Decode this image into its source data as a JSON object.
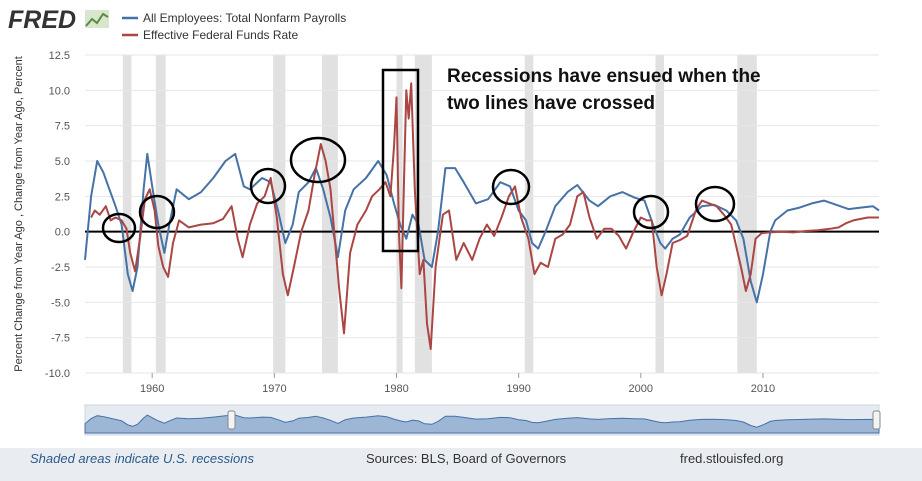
{
  "brand": {
    "name": "FRED",
    "logo_icon": "fred-chart-logo-icon"
  },
  "legend": [
    {
      "label": "All Employees: Total Nonfarm Payrolls",
      "color": "#4572a7"
    },
    {
      "label": "Effective Federal Funds Rate",
      "color": "#aa4643"
    }
  ],
  "annotation": {
    "line1": "Recessions have ensued when the",
    "line2": "two lines have crossed"
  },
  "footer": {
    "note": "Shaded areas indicate U.S. recessions",
    "sources": "Sources: BLS, Board of Governors",
    "url": "fred.stlouisfed.org"
  },
  "chart_data": {
    "type": "line",
    "ylabel": "Percent Change from Year Ago , Change from Year Ago, Percent",
    "xlim": [
      1954.5,
      2019.5
    ],
    "ylim": [
      -10.0,
      12.5
    ],
    "yticks": [
      "12.5",
      "10.0",
      "7.5",
      "5.0",
      "2.5",
      "0.0",
      "-2.5",
      "-5.0",
      "-7.5",
      "-10.0"
    ],
    "ytick_values": [
      12.5,
      10,
      7.5,
      5,
      2.5,
      0,
      -2.5,
      -5,
      -7.5,
      -10
    ],
    "xticks": [
      "1960",
      "1970",
      "1980",
      "1990",
      "2000",
      "2010"
    ],
    "xtick_values": [
      1960,
      1970,
      1980,
      1990,
      2000,
      2010
    ],
    "recessions": [
      [
        1957.6,
        1958.3
      ],
      [
        1960.3,
        1961.1
      ],
      [
        1969.9,
        1970.9
      ],
      [
        1973.9,
        1975.2
      ],
      [
        1980.0,
        1980.5
      ],
      [
        1981.5,
        1982.9
      ],
      [
        1990.5,
        1991.2
      ],
      [
        2001.2,
        2001.9
      ],
      [
        2007.9,
        2009.5
      ]
    ],
    "series": [
      {
        "name": "All Employees: Total Nonfarm Payrolls",
        "color": "#4572a7",
        "x": [
          1954.5,
          1955.0,
          1955.5,
          1956.0,
          1956.5,
          1957.0,
          1957.5,
          1958.0,
          1958.4,
          1958.8,
          1959.3,
          1959.6,
          1960.0,
          1960.5,
          1961.0,
          1961.4,
          1962.0,
          1963.0,
          1964.0,
          1965.0,
          1966.0,
          1966.8,
          1967.5,
          1968.0,
          1969.0,
          1969.7,
          1970.3,
          1970.9,
          1971.5,
          1972.0,
          1972.8,
          1973.4,
          1974.0,
          1974.6,
          1975.2,
          1975.8,
          1976.5,
          1977.5,
          1978.5,
          1979.2,
          1979.8,
          1980.3,
          1980.8,
          1981.3,
          1981.8,
          1982.3,
          1982.9,
          1983.4,
          1984.0,
          1984.8,
          1985.5,
          1986.5,
          1987.5,
          1988.5,
          1989.3,
          1990.0,
          1990.6,
          1991.1,
          1991.6,
          1992.2,
          1993.0,
          1994.0,
          1994.8,
          1995.8,
          1996.5,
          1997.5,
          1998.5,
          1999.5,
          2000.3,
          2001.0,
          2001.6,
          2002.0,
          2002.6,
          2003.2,
          2004.0,
          2005.0,
          2006.0,
          2007.0,
          2007.8,
          2008.4,
          2009.0,
          2009.5,
          2010.0,
          2010.6,
          2011.0,
          2012.0,
          2013.0,
          2014.0,
          2015.0,
          2016.0,
          2017.0,
          2018.0,
          2019.0,
          2019.5
        ],
        "values": [
          -2.0,
          2.5,
          5.0,
          4.2,
          3.0,
          1.8,
          0.5,
          -3.0,
          -4.2,
          -2.5,
          3.0,
          5.5,
          3.2,
          0.5,
          -1.5,
          0.5,
          3.0,
          2.3,
          2.8,
          3.8,
          5.0,
          5.5,
          3.2,
          3.0,
          3.8,
          3.5,
          1.5,
          -0.8,
          0.5,
          2.8,
          3.5,
          4.5,
          3.0,
          1.0,
          -1.8,
          1.5,
          3.0,
          3.8,
          5.0,
          4.0,
          2.0,
          0.5,
          -0.5,
          1.2,
          0.5,
          -2.0,
          -2.5,
          0.0,
          4.5,
          4.5,
          3.5,
          2.0,
          2.3,
          3.5,
          3.2,
          1.5,
          0.8,
          -0.8,
          -1.2,
          0.0,
          1.8,
          2.8,
          3.3,
          2.2,
          1.8,
          2.5,
          2.8,
          2.4,
          2.2,
          0.5,
          -0.8,
          -1.2,
          -0.5,
          -0.2,
          1.0,
          1.8,
          1.9,
          1.5,
          0.8,
          -0.5,
          -3.5,
          -5.0,
          -3.0,
          0.0,
          0.8,
          1.5,
          1.7,
          2.0,
          2.2,
          1.9,
          1.6,
          1.7,
          1.8,
          1.5
        ]
      },
      {
        "name": "Effective Federal Funds Rate",
        "color": "#aa4643",
        "x": [
          1955.0,
          1955.3,
          1955.7,
          1956.2,
          1956.6,
          1957.0,
          1957.5,
          1957.9,
          1958.2,
          1958.6,
          1959.0,
          1959.4,
          1959.8,
          1960.2,
          1960.5,
          1960.9,
          1961.3,
          1961.7,
          1962.2,
          1963.0,
          1964.0,
          1965.0,
          1965.8,
          1966.5,
          1967.0,
          1967.4,
          1968.0,
          1968.6,
          1969.2,
          1969.7,
          1970.2,
          1970.7,
          1971.1,
          1971.6,
          1972.2,
          1972.8,
          1973.3,
          1973.8,
          1974.2,
          1974.6,
          1974.9,
          1975.3,
          1975.7,
          1976.2,
          1976.8,
          1977.5,
          1978.0,
          1978.6,
          1979.1,
          1979.5,
          1979.8,
          1980.0,
          1980.2,
          1980.4,
          1980.6,
          1980.8,
          1981.0,
          1981.2,
          1981.5,
          1981.9,
          1982.2,
          1982.5,
          1982.8,
          1983.2,
          1983.8,
          1984.3,
          1984.9,
          1985.5,
          1986.2,
          1986.8,
          1987.4,
          1988.0,
          1988.6,
          1989.2,
          1989.7,
          1990.2,
          1990.8,
          1991.3,
          1991.8,
          1992.4,
          1993.0,
          1993.6,
          1994.2,
          1994.8,
          1995.3,
          1995.8,
          1996.4,
          1997.0,
          1997.6,
          1998.2,
          1998.8,
          1999.4,
          2000.0,
          2000.5,
          2000.9,
          2001.3,
          2001.7,
          2002.1,
          2002.6,
          2003.2,
          2003.8,
          2004.5,
          2005.0,
          2005.6,
          2006.2,
          2006.8,
          2007.4,
          2007.8,
          2008.2,
          2008.6,
          2009.0,
          2009.4,
          2009.9,
          2010.5,
          2011.5,
          2012.5,
          2013.5,
          2014.5,
          2015.5,
          2016.2,
          2016.8,
          2017.4,
          2018.0,
          2018.6,
          2019.0,
          2019.5
        ],
        "values": [
          1.0,
          1.5,
          1.2,
          1.8,
          0.8,
          1.0,
          0.8,
          0.2,
          -1.5,
          -2.8,
          -0.5,
          2.3,
          3.0,
          1.5,
          -1.0,
          -2.5,
          -3.2,
          -0.8,
          0.8,
          0.3,
          0.5,
          0.6,
          0.9,
          1.8,
          -0.5,
          -1.8,
          0.5,
          2.0,
          2.5,
          3.8,
          1.0,
          -3.0,
          -4.5,
          -2.5,
          0.0,
          1.5,
          4.0,
          6.2,
          5.0,
          3.0,
          0.0,
          -4.0,
          -7.2,
          -1.5,
          0.5,
          1.5,
          2.5,
          3.0,
          3.5,
          2.5,
          6.0,
          9.5,
          0.0,
          -4.0,
          3.0,
          10.0,
          8.0,
          10.5,
          3.0,
          -3.0,
          -2.0,
          -6.5,
          -8.3,
          -2.5,
          1.2,
          1.5,
          -2.0,
          -0.8,
          -2.0,
          -0.5,
          0.5,
          -0.3,
          1.0,
          2.5,
          3.2,
          1.0,
          -0.5,
          -3.0,
          -2.2,
          -2.5,
          -0.5,
          -0.2,
          0.5,
          2.5,
          2.8,
          1.0,
          -0.5,
          0.2,
          0.2,
          -0.3,
          -1.2,
          0.0,
          1.0,
          0.8,
          0.8,
          -2.5,
          -4.5,
          -3.0,
          -0.8,
          -0.6,
          -0.3,
          1.5,
          2.2,
          2.0,
          1.8,
          1.2,
          0.5,
          -1.0,
          -2.5,
          -4.2,
          -3.0,
          -0.5,
          -0.1,
          -0.05,
          0.0,
          -0.05,
          0.05,
          0.1,
          0.2,
          0.3,
          0.6,
          0.8,
          0.9,
          1.0,
          1.0,
          1.0
        ]
      }
    ]
  }
}
